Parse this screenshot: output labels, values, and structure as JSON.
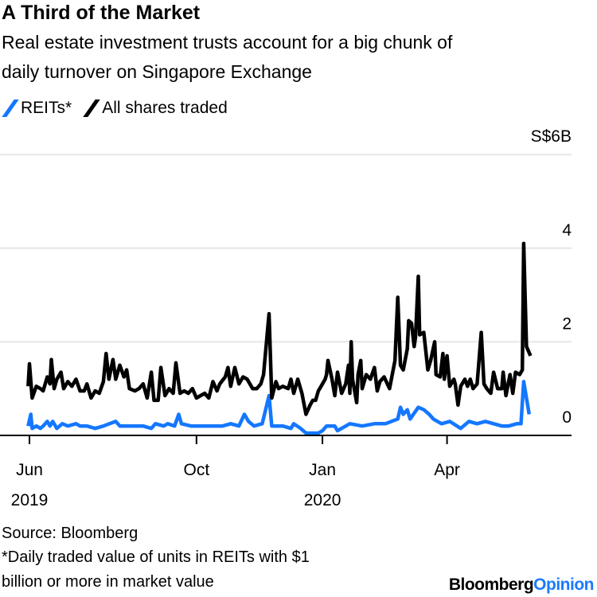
{
  "title": "A Third of the Market",
  "subtitle_lines": [
    "Real estate investment trusts account for a big chunk of",
    "daily turnover on Singapore Exchange"
  ],
  "source": "Source: Bloomberg",
  "footnote_lines": [
    "*Daily traded value of units in REITs with $1",
    "billion or more in market value"
  ],
  "logo": {
    "part1": "Bloomberg",
    "part2": "Opinion"
  },
  "colors": {
    "reits": "#1477ff",
    "all": "#000000",
    "grid": "#e6e6e6",
    "logo_accent": "#1a7aff"
  },
  "chart_data": {
    "type": "line",
    "title": "A Third of the Market",
    "xlabel": "",
    "ylabel": "S$B",
    "x_units": "days since 2019-06-01",
    "xlim": [
      -1,
      366
    ],
    "ylim": [
      0,
      6
    ],
    "y_ticks": [
      {
        "v": 0,
        "label": "0"
      },
      {
        "v": 2,
        "label": "2"
      },
      {
        "v": 4,
        "label": "4"
      },
      {
        "v": 6,
        "label": "S$6B"
      }
    ],
    "x_ticks": [
      {
        "v": 0,
        "label": "Jun",
        "year": "2019"
      },
      {
        "v": 122,
        "label": "Oct",
        "year": ""
      },
      {
        "v": 214,
        "label": "Jan",
        "year": "2020"
      },
      {
        "v": 305,
        "label": "Apr",
        "year": ""
      }
    ],
    "grid": true,
    "legend_position": "top-left",
    "series": [
      {
        "name": "REITs*",
        "color": "#1477ff",
        "points": [
          [
            -1,
            0.2
          ],
          [
            1,
            0.45
          ],
          [
            2,
            0.15
          ],
          [
            5,
            0.2
          ],
          [
            8,
            0.15
          ],
          [
            10,
            0.2
          ],
          [
            13,
            0.3
          ],
          [
            15,
            0.2
          ],
          [
            17,
            0.3
          ],
          [
            20,
            0.15
          ],
          [
            24,
            0.25
          ],
          [
            28,
            0.2
          ],
          [
            34,
            0.25
          ],
          [
            37,
            0.2
          ],
          [
            42,
            0.2
          ],
          [
            48,
            0.15
          ],
          [
            54,
            0.2
          ],
          [
            63,
            0.3
          ],
          [
            66,
            0.2
          ],
          [
            71,
            0.2
          ],
          [
            83,
            0.2
          ],
          [
            89,
            0.15
          ],
          [
            92,
            0.25
          ],
          [
            98,
            0.2
          ],
          [
            101,
            0.25
          ],
          [
            106,
            0.2
          ],
          [
            109,
            0.45
          ],
          [
            111,
            0.25
          ],
          [
            118,
            0.2
          ],
          [
            130,
            0.2
          ],
          [
            141,
            0.2
          ],
          [
            147,
            0.25
          ],
          [
            153,
            0.2
          ],
          [
            157,
            0.45
          ],
          [
            160,
            0.3
          ],
          [
            164,
            0.2
          ],
          [
            170,
            0.25
          ],
          [
            175,
            0.85
          ],
          [
            177,
            0.2
          ],
          [
            185,
            0.2
          ],
          [
            191,
            0.15
          ],
          [
            193,
            0.25
          ],
          [
            198,
            0.15
          ],
          [
            202,
            0.05
          ],
          [
            208,
            0.05
          ],
          [
            211,
            0.05
          ],
          [
            214,
            0.1
          ],
          [
            217,
            0.2
          ],
          [
            223,
            0.2
          ],
          [
            225,
            0.1
          ],
          [
            234,
            0.25
          ],
          [
            243,
            0.2
          ],
          [
            252,
            0.25
          ],
          [
            260,
            0.25
          ],
          [
            269,
            0.35
          ],
          [
            271,
            0.6
          ],
          [
            273,
            0.45
          ],
          [
            276,
            0.55
          ],
          [
            278,
            0.35
          ],
          [
            284,
            0.6
          ],
          [
            288,
            0.55
          ],
          [
            292,
            0.45
          ],
          [
            295,
            0.35
          ],
          [
            301,
            0.25
          ],
          [
            307,
            0.3
          ],
          [
            315,
            0.15
          ],
          [
            321,
            0.3
          ],
          [
            327,
            0.25
          ],
          [
            333,
            0.3
          ],
          [
            339,
            0.25
          ],
          [
            345,
            0.2
          ],
          [
            350,
            0.2
          ],
          [
            356,
            0.25
          ],
          [
            359,
            0.25
          ],
          [
            361,
            1.15
          ],
          [
            365,
            0.45
          ]
        ]
      },
      {
        "name": "All shares traded",
        "color": "#000000",
        "points": [
          [
            -1,
            1.05
          ],
          [
            0,
            1.53
          ],
          [
            2,
            0.8
          ],
          [
            5,
            1.05
          ],
          [
            8,
            1.0
          ],
          [
            10,
            0.95
          ],
          [
            13,
            1.25
          ],
          [
            15,
            1.1
          ],
          [
            16,
            1.62
          ],
          [
            18,
            1.0
          ],
          [
            20,
            1.2
          ],
          [
            23,
            1.35
          ],
          [
            25,
            1.0
          ],
          [
            28,
            1.15
          ],
          [
            31,
            1.05
          ],
          [
            34,
            1.2
          ],
          [
            37,
            0.95
          ],
          [
            40,
            0.95
          ],
          [
            42,
            1.1
          ],
          [
            45,
            0.8
          ],
          [
            48,
            0.95
          ],
          [
            51,
            0.9
          ],
          [
            54,
            1.15
          ],
          [
            56,
            1.75
          ],
          [
            58,
            1.2
          ],
          [
            61,
            1.62
          ],
          [
            63,
            1.2
          ],
          [
            66,
            1.5
          ],
          [
            69,
            1.25
          ],
          [
            71,
            1.4
          ],
          [
            73,
            1.0
          ],
          [
            77,
            0.95
          ],
          [
            80,
            1.0
          ],
          [
            83,
            1.1
          ],
          [
            86,
            0.8
          ],
          [
            89,
            1.35
          ],
          [
            91,
            0.75
          ],
          [
            94,
            0.75
          ],
          [
            96,
            1.45
          ],
          [
            99,
            0.85
          ],
          [
            102,
            1.0
          ],
          [
            105,
            0.9
          ],
          [
            107,
            1.55
          ],
          [
            110,
            0.9
          ],
          [
            113,
            0.95
          ],
          [
            116,
            0.9
          ],
          [
            119,
            1.0
          ],
          [
            122,
            0.8
          ],
          [
            125,
            0.85
          ],
          [
            128,
            0.9
          ],
          [
            131,
            0.8
          ],
          [
            134,
            1.15
          ],
          [
            137,
            0.95
          ],
          [
            139,
            1.1
          ],
          [
            143,
            1.25
          ],
          [
            145,
            1.45
          ],
          [
            147,
            1.05
          ],
          [
            150,
            1.45
          ],
          [
            153,
            1.1
          ],
          [
            156,
            1.25
          ],
          [
            159,
            1.2
          ],
          [
            161,
            1.1
          ],
          [
            163,
            1.0
          ],
          [
            166,
            1.0
          ],
          [
            169,
            1.1
          ],
          [
            171,
            1.3
          ],
          [
            175,
            2.6
          ],
          [
            177,
            0.8
          ],
          [
            180,
            1.15
          ],
          [
            182,
            1.0
          ],
          [
            185,
            1.05
          ],
          [
            189,
            1.0
          ],
          [
            191,
            1.2
          ],
          [
            193,
            0.9
          ],
          [
            196,
            1.2
          ],
          [
            199,
            0.9
          ],
          [
            202,
            0.45
          ],
          [
            205,
            0.65
          ],
          [
            207,
            0.75
          ],
          [
            209,
            0.75
          ],
          [
            211,
            0.95
          ],
          [
            213,
            1.05
          ],
          [
            216,
            1.2
          ],
          [
            217,
            1.3
          ],
          [
            218,
            1.6
          ],
          [
            221,
            1.2
          ],
          [
            223,
            0.85
          ],
          [
            225,
            1.35
          ],
          [
            228,
            0.9
          ],
          [
            231,
            1.1
          ],
          [
            233,
            1.5
          ],
          [
            234,
            0.9
          ],
          [
            235,
            2.0
          ],
          [
            236,
            1.2
          ],
          [
            239,
            0.7
          ],
          [
            240,
            1.3
          ],
          [
            242,
            1.6
          ],
          [
            243,
            1.0
          ],
          [
            246,
            1.3
          ],
          [
            249,
            1.2
          ],
          [
            252,
            1.45
          ],
          [
            254,
            0.95
          ],
          [
            256,
            1.15
          ],
          [
            259,
            1.25
          ],
          [
            263,
            1.0
          ],
          [
            267,
            1.6
          ],
          [
            269,
            2.95
          ],
          [
            271,
            1.5
          ],
          [
            273,
            1.4
          ],
          [
            276,
            1.85
          ],
          [
            277,
            2.45
          ],
          [
            279,
            2.4
          ],
          [
            281,
            1.9
          ],
          [
            282,
            2.1
          ],
          [
            284,
            3.4
          ],
          [
            285,
            2.15
          ],
          [
            288,
            2.2
          ],
          [
            291,
            1.4
          ],
          [
            293,
            1.6
          ],
          [
            296,
            2.0
          ],
          [
            297,
            1.3
          ],
          [
            300,
            1.25
          ],
          [
            302,
            1.75
          ],
          [
            303,
            1.2
          ],
          [
            305,
            1.7
          ],
          [
            307,
            1.05
          ],
          [
            310,
            1.2
          ],
          [
            311,
            1.1
          ],
          [
            313,
            0.65
          ],
          [
            315,
            1.05
          ],
          [
            318,
            1.2
          ],
          [
            320,
            1.05
          ],
          [
            322,
            1.2
          ],
          [
            324,
            1.0
          ],
          [
            327,
            1.1
          ],
          [
            330,
            2.2
          ],
          [
            332,
            1.1
          ],
          [
            334,
            1.0
          ],
          [
            337,
            0.9
          ],
          [
            339,
            1.35
          ],
          [
            342,
            1.0
          ],
          [
            345,
            1.0
          ],
          [
            346,
            1.35
          ],
          [
            348,
            0.85
          ],
          [
            351,
            1.3
          ],
          [
            353,
            0.9
          ],
          [
            355,
            1.35
          ],
          [
            358,
            1.3
          ],
          [
            360,
            1.4
          ],
          [
            361,
            4.1
          ],
          [
            363,
            1.9
          ],
          [
            366,
            1.7
          ]
        ]
      }
    ]
  }
}
